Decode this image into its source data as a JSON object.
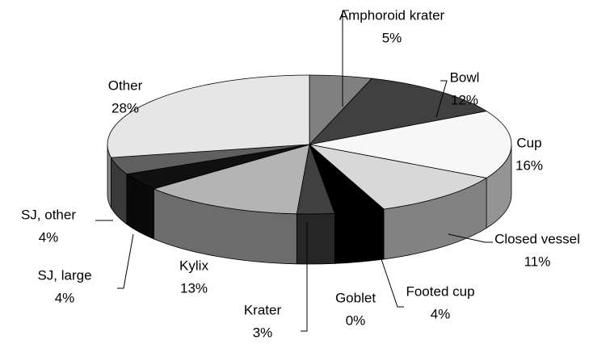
{
  "chart_data": {
    "type": "pie3d",
    "categories": [
      "Amphoroid krater",
      "Bowl",
      "Cup",
      "Closed vessel",
      "Footed cup",
      "Goblet",
      "Krater",
      "Kylix",
      "SJ, large",
      "SJ, other",
      "Other"
    ],
    "values": [
      5,
      12,
      16,
      11,
      4,
      0,
      3,
      13,
      4,
      4,
      28
    ],
    "value_labels": [
      "5%",
      "12%",
      "16%",
      "11%",
      "4%",
      "0%",
      "3%",
      "13%",
      "4%",
      "4%",
      "28%"
    ],
    "colors": [
      "#808080",
      "#404040",
      "#f7f7f7",
      "#d8d8d8",
      "#000000",
      "#909090",
      "#404040",
      "#b4b4b4",
      "#101010",
      "#606060",
      "#e6e6e6"
    ]
  }
}
